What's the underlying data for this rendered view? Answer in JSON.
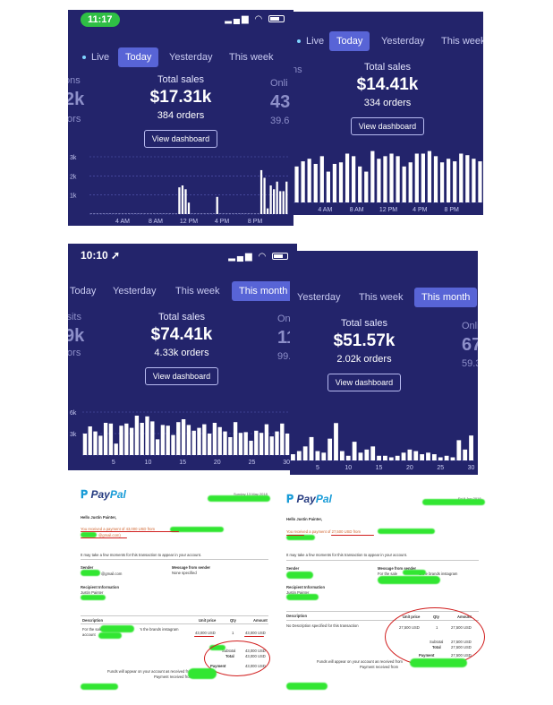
{
  "panels": {
    "p1": {
      "status_time": "11:17",
      "tabs": [
        "Live",
        "Today",
        "Yesterday",
        "This week"
      ],
      "active_tab": "Today",
      "side_left": {
        "a": "ons",
        "b": "2k",
        "c": "tors"
      },
      "side_right": {
        "a": "Onli",
        "b": "43",
        "c": "39.6"
      },
      "total_label": "Total sales",
      "total_value": "$17.31k",
      "orders": "384 orders",
      "button": "View dashboard",
      "y_ticks": [
        "3k",
        "2k",
        "1k"
      ],
      "x_ticks": [
        "4 AM",
        "8 AM",
        "12 PM",
        "4 PM",
        "8 PM"
      ]
    },
    "p2": {
      "tabs": [
        "Live",
        "Today",
        "Yesterday",
        "This week"
      ],
      "active_tab": "Today",
      "side_left": {
        "a": "ns"
      },
      "total_label": "Total sales",
      "total_value": "$14.41k",
      "orders": "334 orders",
      "button": "View dashboard",
      "x_ticks": [
        "4 AM",
        "8 AM",
        "12 PM",
        "4 PM",
        "8 PM"
      ]
    },
    "p3": {
      "status_time": "10:10",
      "tabs": [
        "Today",
        "Yesterday",
        "This week",
        "This month"
      ],
      "active_tab": "This month",
      "side_left": {
        "a": "isits",
        "b": "9k",
        "c": "tors"
      },
      "side_right": {
        "a": "Onli",
        "b": "11",
        "c": "99.3"
      },
      "total_label": "Total sales",
      "total_value": "$74.41k",
      "orders": "4.33k orders",
      "button": "View dashboard",
      "y_ticks": [
        "6k",
        "3k"
      ],
      "x_ticks": [
        "5",
        "10",
        "15",
        "20",
        "25",
        "30"
      ]
    },
    "p4": {
      "tabs": [
        "Yesterday",
        "This week",
        "This month"
      ],
      "active_tab": "This month",
      "side_right": {
        "a": "Onli",
        "b": "67",
        "c": "59.3"
      },
      "total_label": "Total sales",
      "total_value": "$51.57k",
      "orders": "2.02k orders",
      "button": "View dashboard",
      "x_ticks": [
        "5",
        "10",
        "15",
        "20",
        "25",
        "30"
      ]
    }
  },
  "paypal": {
    "left": {
      "logo_a": "Pay",
      "logo_b": "Pal",
      "date": "Sunday 13 May 2018",
      "greeting": "Hello Justin Painter,",
      "received_a": "You received a payment of",
      "received_amount": "43,000 USD",
      "received_b": "from",
      "received_email": "@gmail.com)",
      "note": "It may take a few moments for this transaction to appear in your account.",
      "sender_label": "Sender",
      "sender_email": "@gmail.com",
      "message_label": "Message from sender",
      "message_value": "None specified",
      "recipient_label": "Recipient Information",
      "recipient_name": "Justin Painter",
      "col_description": "Description",
      "col_unit_price": "Unit price",
      "col_qty": "Qty",
      "col_amount": "Amount",
      "item_a": "For the sale",
      "item_b": "account",
      "item_c": "'s the brands instagram",
      "unit_price": "43,000 USD",
      "qty": "1",
      "amount": "43,000 USD",
      "subtotal_label": "Subtotal",
      "subtotal_value": "43,000 USD",
      "total_label": "Total",
      "total_value": "43,000 USD",
      "payment_label": "Payment",
      "payment_value": "43,000 USD",
      "funds_a": "Funds will appear on your account as received from",
      "funds_b": "Payment received from"
    },
    "right": {
      "logo_a": "Pay",
      "logo_b": "Pal",
      "date": "Fri 8 Jun 2018",
      "greeting": "Hello Justin Painter,",
      "received_a": "You received a payment of",
      "received_amount": "27,500 USD",
      "received_b": "from",
      "note": "It may take a few moments for this transaction to appear in your account.",
      "sender_label": "Sender",
      "message_label": "Message from sender",
      "message_value": "For the sale",
      "message_value_b": "& the brands instagram",
      "recipient_label": "Recipient Information",
      "recipient_name": "Justin Painter",
      "col_description": "Description",
      "col_unit_price": "Unit price",
      "col_qty": "Qty",
      "col_amount": "Amount",
      "item_a": "No Description specified for this transaction",
      "unit_price": "27,500 USD",
      "qty": "1",
      "amount": "27,500 USD",
      "subtotal_label": "Subtotal",
      "subtotal_value": "27,500 USD",
      "total_label": "Total",
      "total_value": "27,500 USD",
      "payment_label": "Payment",
      "payment_value": "27,500 USD",
      "funds_a": "Funds will appear on your account as received from",
      "funds_b": "Payment received from"
    }
  },
  "colors": {
    "panel_bg": "#23246b",
    "active_tab": "#5864d6",
    "bar": "#ffffff",
    "status_green": "#2fbf45",
    "redaction": "#32e632",
    "annotation_red": "#d11d1d",
    "paypal_orange": "#d0632d"
  },
  "chart_data": [
    {
      "type": "bar",
      "panel": "p1",
      "ylim": [
        0,
        3000
      ],
      "values": [
        0,
        0,
        0,
        0,
        0,
        0,
        0,
        0,
        0,
        0,
        0,
        0,
        0,
        0,
        0,
        0,
        0,
        0,
        0,
        0,
        0,
        0,
        0,
        0,
        0,
        0,
        0,
        0,
        1400,
        1500,
        1300,
        600,
        0,
        0,
        0,
        0,
        0,
        0,
        0,
        0,
        900,
        0,
        0,
        0,
        0,
        0,
        0,
        0,
        0,
        0,
        0,
        0,
        0,
        0,
        2300,
        1900,
        300,
        1500,
        1300,
        1700,
        1200,
        1200,
        1700
      ]
    },
    {
      "type": "bar",
      "panel": "p2",
      "values": [
        70,
        80,
        85,
        75,
        90,
        60,
        75,
        78,
        95,
        90,
        70,
        60,
        100,
        85,
        90,
        95,
        90,
        70,
        78,
        95,
        95,
        100,
        90,
        78,
        85,
        80,
        95,
        92,
        85,
        80
      ]
    },
    {
      "type": "bar",
      "panel": "p3",
      "ylim": [
        0,
        6000
      ],
      "x_ticks": [
        5,
        10,
        15,
        20,
        25,
        30
      ],
      "values": [
        3000,
        4000,
        3300,
        2700,
        4500,
        4400,
        1600,
        4100,
        4400,
        3800,
        5500,
        4500,
        5400,
        4700,
        2200,
        4200,
        4100,
        2800,
        4600,
        5000,
        4200,
        3400,
        3800,
        4300,
        3000,
        4500,
        3900,
        3300,
        2500,
        4600,
        3100,
        3200,
        2000,
        3400,
        3100,
        4300,
        2600,
        3300,
        4400,
        3000
      ]
    },
    {
      "type": "bar",
      "panel": "p4",
      "x_ticks": [
        5,
        10,
        15,
        20,
        25,
        30
      ],
      "values": [
        400,
        600,
        900,
        1500,
        600,
        500,
        1400,
        2400,
        600,
        300,
        1200,
        500,
        700,
        900,
        300,
        300,
        200,
        300,
        500,
        700,
        600,
        400,
        500,
        400,
        200,
        300,
        200,
        1300,
        700,
        1600
      ]
    }
  ]
}
